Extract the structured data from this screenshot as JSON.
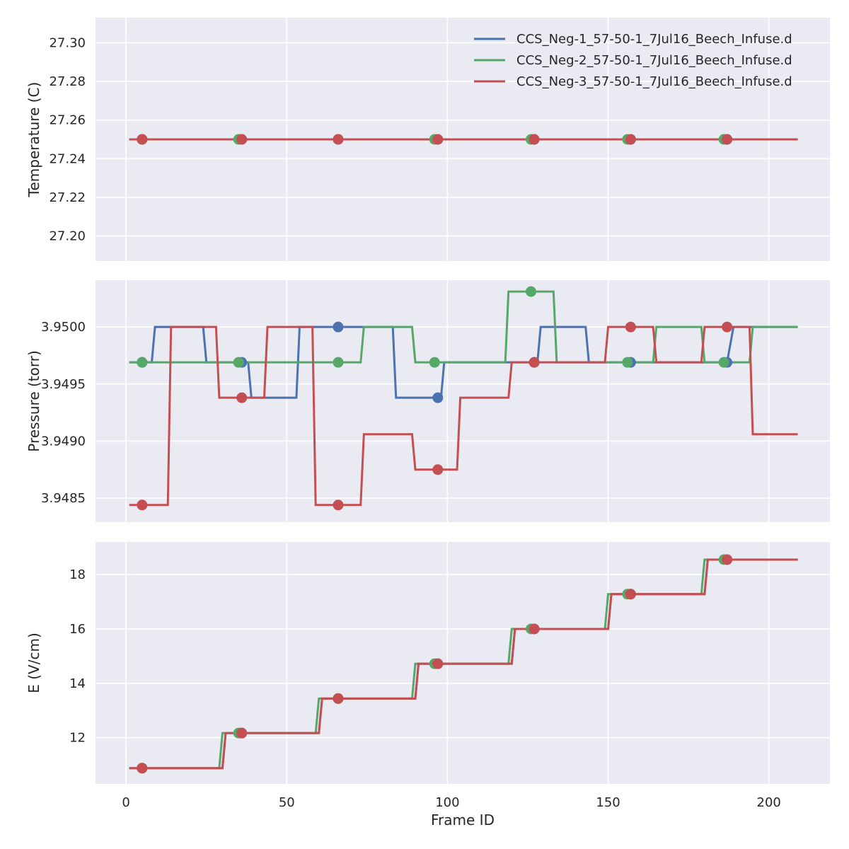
{
  "style": {
    "panel_background": "#EAEAF2",
    "grid_color": "#FFFFFF",
    "series_colors": [
      "#4C72B0",
      "#55A868",
      "#C44E52"
    ]
  },
  "chart_data": [
    {
      "type": "line",
      "ylabel": "Temperature (C)",
      "xlim": [
        -9.5,
        219
      ],
      "ylim": [
        27.187,
        27.313
      ],
      "yticks": [
        27.2,
        27.22,
        27.24,
        27.26,
        27.28,
        27.3
      ],
      "ytick_labels": [
        "27.20",
        "27.22",
        "27.24",
        "27.26",
        "27.28",
        "27.30"
      ],
      "legend": {
        "location": "top-right",
        "entries": [
          "CCS_Neg-1_57-50-1_7Jul16_Beech_Infuse.d",
          "CCS_Neg-2_57-50-1_7Jul16_Beech_Infuse.d",
          "CCS_Neg-3_57-50-1_7Jul16_Beech_Infuse.d"
        ]
      },
      "series": [
        {
          "name": "CCS_Neg-1_57-50-1_7Jul16_Beech_Infuse.d",
          "step": [
            [
              1,
              27.25
            ],
            [
              209,
              27.25
            ]
          ],
          "markers": [
            [
              5,
              27.25
            ],
            [
              36,
              27.25
            ],
            [
              66,
              27.25
            ],
            [
              97,
              27.25
            ],
            [
              127,
              27.25
            ],
            [
              157,
              27.25
            ],
            [
              187,
              27.25
            ]
          ]
        },
        {
          "name": "CCS_Neg-2_57-50-1_7Jul16_Beech_Infuse.d",
          "step": [
            [
              1,
              27.25
            ],
            [
              209,
              27.25
            ]
          ],
          "markers": [
            [
              5,
              27.25
            ],
            [
              35,
              27.25
            ],
            [
              66,
              27.25
            ],
            [
              96,
              27.25
            ],
            [
              126,
              27.25
            ],
            [
              156,
              27.25
            ],
            [
              186,
              27.25
            ]
          ]
        },
        {
          "name": "CCS_Neg-3_57-50-1_7Jul16_Beech_Infuse.d",
          "step": [
            [
              1,
              27.25
            ],
            [
              209,
              27.25
            ]
          ],
          "markers": [
            [
              5,
              27.25
            ],
            [
              36,
              27.25
            ],
            [
              66,
              27.25
            ],
            [
              97,
              27.25
            ],
            [
              127,
              27.25
            ],
            [
              157,
              27.25
            ],
            [
              187,
              27.25
            ]
          ]
        }
      ]
    },
    {
      "type": "line",
      "ylabel": "Pressure (torr)",
      "xlim": [
        -9.5,
        219
      ],
      "ylim": [
        3.94829,
        3.95041
      ],
      "yticks": [
        3.9485,
        3.949,
        3.9495,
        3.95
      ],
      "ytick_labels": [
        "3.9485",
        "3.9490",
        "3.9495",
        "3.9500"
      ],
      "series": [
        {
          "name": "CCS_Neg-1_57-50-1_7Jul16_Beech_Infuse.d",
          "step": [
            [
              1,
              3.94969
            ],
            [
              8,
              3.94969
            ],
            [
              9,
              3.95
            ],
            [
              24,
              3.95
            ],
            [
              25,
              3.94969
            ],
            [
              34,
              3.94969
            ],
            [
              35,
              3.94969
            ],
            [
              38,
              3.94969
            ],
            [
              39,
              3.94938
            ],
            [
              53,
              3.94938
            ],
            [
              54,
              3.95
            ],
            [
              83,
              3.95
            ],
            [
              84,
              3.94938
            ],
            [
              98,
              3.94938
            ],
            [
              99,
              3.94969
            ],
            [
              128,
              3.94969
            ],
            [
              129,
              3.95
            ],
            [
              143,
              3.95
            ],
            [
              144,
              3.94969
            ],
            [
              187,
              3.94969
            ],
            [
              189,
              3.95
            ],
            [
              209,
              3.95
            ]
          ],
          "markers": [
            [
              5,
              3.94969
            ],
            [
              36,
              3.94969
            ],
            [
              66,
              3.95
            ],
            [
              97,
              3.94938
            ],
            [
              127,
              3.94969
            ],
            [
              157,
              3.94969
            ],
            [
              187,
              3.94969
            ]
          ]
        },
        {
          "name": "CCS_Neg-2_57-50-1_7Jul16_Beech_Infuse.d",
          "step": [
            [
              1,
              3.94969
            ],
            [
              73,
              3.94969
            ],
            [
              74,
              3.95
            ],
            [
              89,
              3.95
            ],
            [
              90,
              3.94969
            ],
            [
              118,
              3.94969
            ],
            [
              119,
              3.95031
            ],
            [
              133,
              3.95031
            ],
            [
              134,
              3.94969
            ],
            [
              164,
              3.94969
            ],
            [
              165,
              3.95
            ],
            [
              179,
              3.95
            ],
            [
              180,
              3.94969
            ],
            [
              194,
              3.94969
            ],
            [
              195,
              3.95
            ],
            [
              209,
              3.95
            ]
          ],
          "markers": [
            [
              5,
              3.94969
            ],
            [
              35,
              3.94969
            ],
            [
              66,
              3.94969
            ],
            [
              96,
              3.94969
            ],
            [
              126,
              3.95031
            ],
            [
              156,
              3.94969
            ],
            [
              186,
              3.94969
            ]
          ]
        },
        {
          "name": "CCS_Neg-3_57-50-1_7Jul16_Beech_Infuse.d",
          "step": [
            [
              1,
              3.94844
            ],
            [
              13,
              3.94844
            ],
            [
              14,
              3.95
            ],
            [
              28,
              3.95
            ],
            [
              29,
              3.94938
            ],
            [
              43,
              3.94938
            ],
            [
              44,
              3.95
            ],
            [
              58,
              3.95
            ],
            [
              59,
              3.94844
            ],
            [
              73,
              3.94844
            ],
            [
              74,
              3.94906
            ],
            [
              89,
              3.94906
            ],
            [
              90,
              3.94875
            ],
            [
              103,
              3.94875
            ],
            [
              104,
              3.94938
            ],
            [
              119,
              3.94938
            ],
            [
              120,
              3.94969
            ],
            [
              149,
              3.94969
            ],
            [
              150,
              3.95
            ],
            [
              164,
              3.95
            ],
            [
              165,
              3.94969
            ],
            [
              179,
              3.94969
            ],
            [
              180,
              3.95
            ],
            [
              194,
              3.95
            ],
            [
              195,
              3.94906
            ],
            [
              209,
              3.94906
            ]
          ],
          "markers": [
            [
              5,
              3.94844
            ],
            [
              36,
              3.94938
            ],
            [
              66,
              3.94844
            ],
            [
              97,
              3.94875
            ],
            [
              127,
              3.94969
            ],
            [
              157,
              3.95
            ],
            [
              187,
              3.95
            ]
          ]
        }
      ]
    },
    {
      "type": "line",
      "ylabel": "E (V/cm)",
      "xlabel": "Frame ID",
      "xlim": [
        -9.5,
        219
      ],
      "ylim": [
        10.3,
        19.2
      ],
      "yticks": [
        12,
        14,
        16,
        18
      ],
      "ytick_labels": [
        "12",
        "14",
        "16",
        "18"
      ],
      "xticks": [
        0,
        50,
        100,
        150,
        200
      ],
      "xtick_labels": [
        "0",
        "50",
        "100",
        "150",
        "200"
      ],
      "series": [
        {
          "name": "CCS_Neg-1_57-50-1_7Jul16_Beech_Infuse.d",
          "step": [
            [
              1,
              10.88
            ],
            [
              30,
              10.88
            ],
            [
              31,
              12.17
            ],
            [
              60,
              12.17
            ],
            [
              61,
              13.44
            ],
            [
              90,
              13.44
            ],
            [
              91,
              14.72
            ],
            [
              120,
              14.72
            ],
            [
              121,
              16.0
            ],
            [
              150,
              16.0
            ],
            [
              151,
              17.28
            ],
            [
              180,
              17.28
            ],
            [
              181,
              18.55
            ],
            [
              209,
              18.55
            ]
          ],
          "markers": [
            [
              5,
              10.88
            ],
            [
              36,
              12.17
            ],
            [
              66,
              13.44
            ],
            [
              97,
              14.72
            ],
            [
              127,
              16.0
            ],
            [
              157,
              17.28
            ],
            [
              187,
              18.55
            ]
          ]
        },
        {
          "name": "CCS_Neg-2_57-50-1_7Jul16_Beech_Infuse.d",
          "step": [
            [
              1,
              10.88
            ],
            [
              29,
              10.88
            ],
            [
              30,
              12.17
            ],
            [
              59,
              12.17
            ],
            [
              60,
              13.44
            ],
            [
              89,
              13.44
            ],
            [
              90,
              14.72
            ],
            [
              119,
              14.72
            ],
            [
              120,
              16.0
            ],
            [
              149,
              16.0
            ],
            [
              150,
              17.28
            ],
            [
              179,
              17.28
            ],
            [
              180,
              18.55
            ],
            [
              209,
              18.55
            ]
          ],
          "markers": [
            [
              5,
              10.88
            ],
            [
              35,
              12.17
            ],
            [
              66,
              13.44
            ],
            [
              96,
              14.72
            ],
            [
              126,
              16.0
            ],
            [
              156,
              17.28
            ],
            [
              186,
              18.55
            ]
          ]
        },
        {
          "name": "CCS_Neg-3_57-50-1_7Jul16_Beech_Infuse.d",
          "step": [
            [
              1,
              10.88
            ],
            [
              30,
              10.88
            ],
            [
              31,
              12.17
            ],
            [
              60,
              12.17
            ],
            [
              61,
              13.44
            ],
            [
              90,
              13.44
            ],
            [
              91,
              14.72
            ],
            [
              120,
              14.72
            ],
            [
              121,
              16.0
            ],
            [
              150,
              16.0
            ],
            [
              151,
              17.28
            ],
            [
              180,
              17.28
            ],
            [
              181,
              18.55
            ],
            [
              209,
              18.55
            ]
          ],
          "markers": [
            [
              5,
              10.88
            ],
            [
              36,
              12.17
            ],
            [
              66,
              13.44
            ],
            [
              97,
              14.72
            ],
            [
              127,
              16.0
            ],
            [
              157,
              17.28
            ],
            [
              187,
              18.55
            ]
          ]
        }
      ]
    }
  ]
}
